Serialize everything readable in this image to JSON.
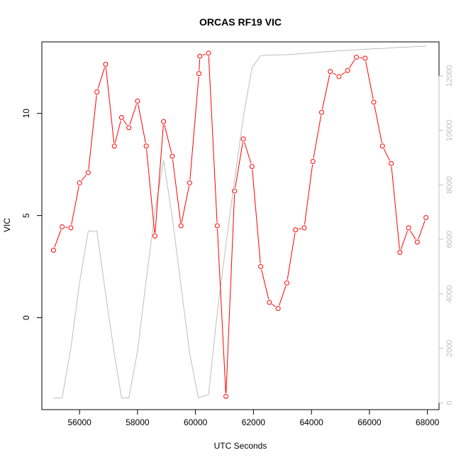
{
  "chart_data": {
    "type": "line",
    "title": "ORCAS RF19 VIC",
    "xlabel": "UTC Seconds",
    "ylabel": "VIC",
    "xlim": [
      54700,
      68400
    ],
    "ylim": [
      -4.5,
      13.5
    ],
    "y2lim": [
      -250,
      13250
    ],
    "x_ticks": [
      56000,
      58000,
      60000,
      62000,
      64000,
      66000,
      68000
    ],
    "y_ticks": [
      0,
      5,
      10
    ],
    "y2_ticks": [
      0,
      2000,
      4000,
      6000,
      8000,
      10000,
      12000
    ],
    "grid": false,
    "legend": "none",
    "colors": {
      "vic": "#ff0000",
      "secondary": "#bebebe",
      "axis": "#000000",
      "secondary_axis": "#bebebe"
    },
    "series": [
      {
        "axis": "left",
        "style": "line+circle",
        "x": [
          55100,
          55400,
          55700,
          56000,
          56300,
          56600,
          56900,
          57200,
          57450,
          57700,
          58000,
          58300,
          58600,
          58900,
          59200,
          59500,
          59800,
          60120,
          60150,
          60450,
          60750,
          61050,
          61350,
          61650,
          61950,
          62250,
          62550,
          62850,
          63150,
          63450,
          63750,
          64050,
          64350,
          64650,
          64950,
          65250,
          65550,
          65850,
          66150,
          66450,
          66750,
          67050,
          67350,
          67650,
          67950
        ],
        "y": [
          3.3,
          4.45,
          4.4,
          6.6,
          7.1,
          11.05,
          12.4,
          8.4,
          9.8,
          9.3,
          10.6,
          8.4,
          4.0,
          9.6,
          7.9,
          4.5,
          6.6,
          11.95,
          12.8,
          12.95,
          4.5,
          -3.85,
          6.2,
          8.75,
          7.4,
          2.5,
          0.75,
          0.45,
          1.7,
          4.3,
          4.4,
          7.65,
          10.05,
          12.05,
          11.8,
          12.1,
          12.75,
          12.7,
          10.55,
          8.4,
          7.55,
          3.2,
          4.4,
          3.7,
          4.9
        ]
      },
      {
        "axis": "right",
        "style": "line",
        "x": [
          55100,
          55400,
          55700,
          56000,
          56300,
          56600,
          56900,
          57200,
          57450,
          57700,
          58000,
          58300,
          58600,
          58900,
          59200,
          59500,
          59800,
          60100,
          60450,
          60750,
          61050,
          61350,
          61650,
          61950,
          62250,
          62550,
          62850,
          63150,
          63450,
          63750,
          64050,
          64350,
          64650,
          64950,
          65250,
          65550,
          65850,
          66150,
          66450,
          66750,
          67050,
          67350,
          67650,
          67950
        ],
        "y": [
          180,
          180,
          2000,
          4400,
          6300,
          6300,
          4000,
          1800,
          180,
          180,
          1900,
          4500,
          7000,
          8900,
          6800,
          4300,
          1800,
          180,
          300,
          3300,
          5800,
          8200,
          10500,
          12300,
          12750,
          12760,
          12770,
          12780,
          12800,
          12830,
          12850,
          12880,
          12900,
          12920,
          12940,
          12960,
          12980,
          13000,
          13010,
          13030,
          13050,
          13060,
          13080,
          13090
        ]
      }
    ]
  }
}
